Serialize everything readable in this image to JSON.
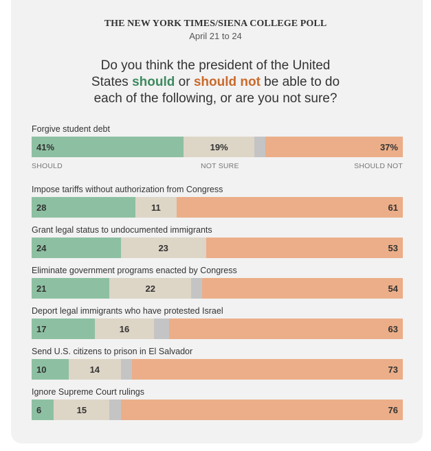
{
  "header": {
    "poll_title": "THE NEW YORK TIMES/SIENA COLLEGE POLL",
    "dates": "April 21 to 24"
  },
  "question": {
    "part1": "Do you think the president of the United States ",
    "should": "should",
    "or": " or ",
    "should_not": "should not",
    "part2": " be able to do each of the following, or are you not sure?"
  },
  "axis_labels": {
    "should": "SHOULD",
    "not_sure": "NOT SURE",
    "should_not": "SHOULD NOT"
  },
  "colors": {
    "should": "#8dc0a2",
    "not_sure": "#ddd5c6",
    "remainder": "#c4c4c4",
    "should_not": "#ebae88",
    "should_text": "#3d8a5f",
    "should_not_text": "#c96a2b"
  },
  "chart_data": {
    "type": "bar",
    "orientation": "horizontal-stacked",
    "xlim": [
      0,
      100
    ],
    "categories": [
      "Forgive student debt",
      "Impose tariffs without authorization from Congress",
      "Grant legal status to undocumented immigrants",
      "Eliminate government programs enacted by Congress",
      "Deport legal immigrants who have protested Israel",
      "Send U.S. citizens to prison in El Salvador",
      "Ignore Supreme Court rulings"
    ],
    "series": [
      {
        "name": "SHOULD",
        "values": [
          41,
          28,
          24,
          21,
          17,
          10,
          6
        ]
      },
      {
        "name": "NOT SURE",
        "values": [
          19,
          11,
          23,
          22,
          16,
          14,
          15
        ]
      },
      {
        "name": "SHOULD NOT",
        "values": [
          37,
          61,
          53,
          54,
          63,
          73,
          76
        ]
      }
    ],
    "value_labels": [
      [
        "41%",
        "19%",
        "37%"
      ],
      [
        "28",
        "11",
        "61"
      ],
      [
        "24",
        "23",
        "53"
      ],
      [
        "21",
        "22",
        "54"
      ],
      [
        "17",
        "16",
        "63"
      ],
      [
        "10",
        "14",
        "73"
      ],
      [
        "6",
        "15",
        "76"
      ]
    ]
  }
}
